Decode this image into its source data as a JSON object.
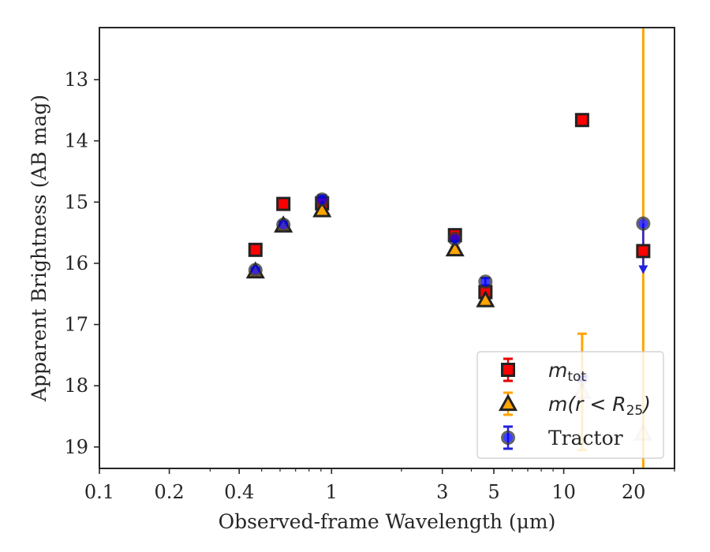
{
  "colors": {
    "square_fill": "#ff0000",
    "triangle_fill": "#ffa500",
    "circle_fill": "#0000ff",
    "errbar_red": "#e60000",
    "errbar_orange": "#ffa500",
    "errbar_blue": "#2222dd",
    "edge": "#222222",
    "axis": "#262626"
  },
  "chart_data": {
    "type": "scatter",
    "title": "",
    "xlabel": "Observed-frame Wavelength (μm)",
    "ylabel": "Apparent Brightness (AB mag)",
    "xscale": "log",
    "xlim": [
      0.1,
      30
    ],
    "ylim": [
      19.35,
      12.15
    ],
    "y_inverted": true,
    "grid": false,
    "legend_position": "lower-right",
    "xticks": [
      {
        "value": 0.1,
        "label": "0.1"
      },
      {
        "value": 0.2,
        "label": "0.2"
      },
      {
        "value": 0.4,
        "label": "0.4"
      },
      {
        "value": 1,
        "label": "1"
      },
      {
        "value": 3,
        "label": "3"
      },
      {
        "value": 5,
        "label": "5"
      },
      {
        "value": 10,
        "label": "10"
      },
      {
        "value": 20,
        "label": "20"
      }
    ],
    "yticks": [
      {
        "value": 13,
        "label": "13"
      },
      {
        "value": 14,
        "label": "14"
      },
      {
        "value": 15,
        "label": "15"
      },
      {
        "value": 16,
        "label": "16"
      },
      {
        "value": 17,
        "label": "17"
      },
      {
        "value": 18,
        "label": "18"
      },
      {
        "value": 19,
        "label": "19"
      }
    ],
    "series": [
      {
        "name": "m_tot",
        "legend_main": "m",
        "legend_sub": "tot",
        "marker": "square",
        "color": "#ff0000",
        "points": [
          {
            "x": 0.47,
            "y": 15.78,
            "err": 0.03
          },
          {
            "x": 0.62,
            "y": 15.03,
            "err": 0.03
          },
          {
            "x": 0.91,
            "y": 15.02,
            "err": 0.03
          },
          {
            "x": 3.4,
            "y": 15.54,
            "err": 0.03
          },
          {
            "x": 4.6,
            "y": 16.47,
            "err": 0.04
          },
          {
            "x": 12.0,
            "y": 13.66,
            "err": 0.02
          },
          {
            "x": 22.0,
            "y": 15.8,
            "err": 0.03
          }
        ]
      },
      {
        "name": "m(r < R25)",
        "legend_main": "m(r < R",
        "legend_sub": "25",
        "legend_tail": ")",
        "marker": "triangle",
        "color": "#ffa500",
        "points": [
          {
            "x": 0.47,
            "y": 16.13,
            "err": 0.03
          },
          {
            "x": 0.62,
            "y": 15.38,
            "err": 0.03
          },
          {
            "x": 0.91,
            "y": 15.13,
            "err": 0.03
          },
          {
            "x": 3.4,
            "y": 15.77,
            "err": 0.03
          },
          {
            "x": 4.6,
            "y": 16.6,
            "err": 0.04
          },
          {
            "x": 12.0,
            "y": 18.1,
            "err_low": 0.95,
            "err_high": 0.95,
            "faded": true
          },
          {
            "x": 22.0,
            "y": 18.78,
            "err_low": 16.0,
            "err_high": 1.0,
            "faded": true
          }
        ]
      },
      {
        "name": "Tractor",
        "legend_main": "Tractor",
        "marker": "circle",
        "color": "#0000ff",
        "points": [
          {
            "x": 0.47,
            "y": 16.11,
            "err": 0.03
          },
          {
            "x": 0.62,
            "y": 15.37,
            "err": 0.05
          },
          {
            "x": 0.91,
            "y": 14.96,
            "err": 0.07
          },
          {
            "x": 3.4,
            "y": 15.6,
            "err": 0.04
          },
          {
            "x": 4.6,
            "y": 16.3,
            "err": 0.06
          },
          {
            "x": 12.0,
            "y": 17.88,
            "err": 0.03,
            "faded": true
          },
          {
            "x": 22.0,
            "y": 15.35,
            "upper_limit_to": 16.15
          }
        ]
      }
    ]
  }
}
